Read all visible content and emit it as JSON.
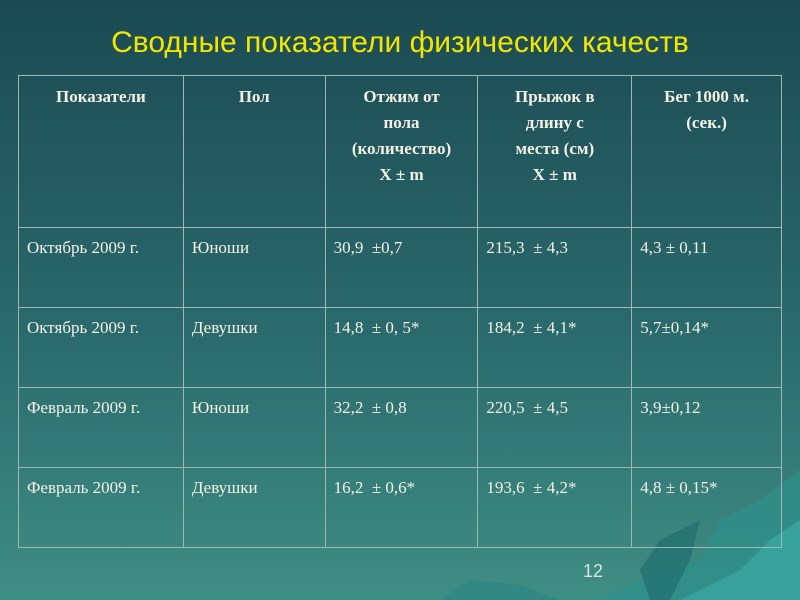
{
  "title": "Сводные показатели физических качеств",
  "table": {
    "header": [
      [
        "Показатели"
      ],
      [
        "Пол"
      ],
      [
        "Отжим от",
        "пола",
        "(количество)",
        "X ± m"
      ],
      [
        "Прыжок в",
        "длину с",
        "места (см)",
        "X ± m"
      ],
      [
        "Бег 1000 м.",
        "(сек.)"
      ]
    ],
    "rows": [
      [
        "Октябрь 2009 г.",
        "Юноши",
        "30,9  ±0,7",
        "215,3  ± 4,3",
        "4,3 ± 0,11"
      ],
      [
        "Октябрь 2009 г.",
        "Девушки",
        "14,8  ± 0, 5*",
        "184,2  ± 4,1*",
        "5,7±0,14*"
      ],
      [
        "Февраль 2009 г.",
        "Юноши",
        "32,2  ± 0,8",
        "220,5  ± 4,5",
        "3,9±0,12"
      ],
      [
        "Февраль 2009 г.",
        "Девушки",
        "16,2  ± 0,6*",
        "193,6  ± 4,2*",
        "4,8 ± 0,15*"
      ]
    ]
  },
  "page_number": "12"
}
